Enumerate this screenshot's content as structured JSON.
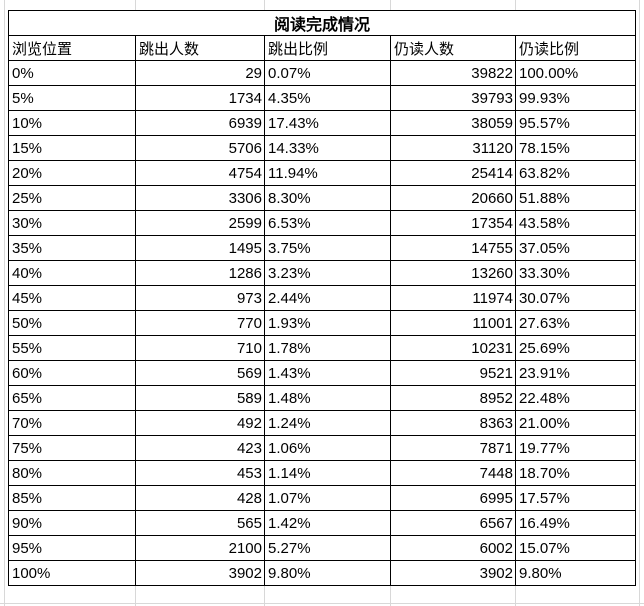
{
  "colors": {
    "border": "#000000",
    "gridline": "#d8d8d8",
    "background": "#ffffff",
    "text": "#000000"
  },
  "table": {
    "title": "阅读完成情况",
    "headers": [
      "浏览位置",
      "跳出人数",
      "跳出比例",
      "仍读人数",
      "仍读比例"
    ],
    "rows": [
      [
        "0%",
        "29",
        "0.07%",
        "39822",
        "100.00%"
      ],
      [
        "5%",
        "1734",
        "4.35%",
        "39793",
        "99.93%"
      ],
      [
        "10%",
        "6939",
        "17.43%",
        "38059",
        "95.57%"
      ],
      [
        "15%",
        "5706",
        "14.33%",
        "31120",
        "78.15%"
      ],
      [
        "20%",
        "4754",
        "11.94%",
        "25414",
        "63.82%"
      ],
      [
        "25%",
        "3306",
        "8.30%",
        "20660",
        "51.88%"
      ],
      [
        "30%",
        "2599",
        "6.53%",
        "17354",
        "43.58%"
      ],
      [
        "35%",
        "1495",
        "3.75%",
        "14755",
        "37.05%"
      ],
      [
        "40%",
        "1286",
        "3.23%",
        "13260",
        "33.30%"
      ],
      [
        "45%",
        "973",
        "2.44%",
        "11974",
        "30.07%"
      ],
      [
        "50%",
        "770",
        "1.93%",
        "11001",
        "27.63%"
      ],
      [
        "55%",
        "710",
        "1.78%",
        "10231",
        "25.69%"
      ],
      [
        "60%",
        "569",
        "1.43%",
        "9521",
        "23.91%"
      ],
      [
        "65%",
        "589",
        "1.48%",
        "8952",
        "22.48%"
      ],
      [
        "70%",
        "492",
        "1.24%",
        "8363",
        "21.00%"
      ],
      [
        "75%",
        "423",
        "1.06%",
        "7871",
        "19.77%"
      ],
      [
        "80%",
        "453",
        "1.14%",
        "7448",
        "18.70%"
      ],
      [
        "85%",
        "428",
        "1.07%",
        "6995",
        "17.57%"
      ],
      [
        "90%",
        "565",
        "1.42%",
        "6567",
        "16.49%"
      ],
      [
        "95%",
        "2100",
        "5.27%",
        "6002",
        "15.07%"
      ],
      [
        "100%",
        "3902",
        "9.80%",
        "3902",
        "9.80%"
      ]
    ]
  }
}
